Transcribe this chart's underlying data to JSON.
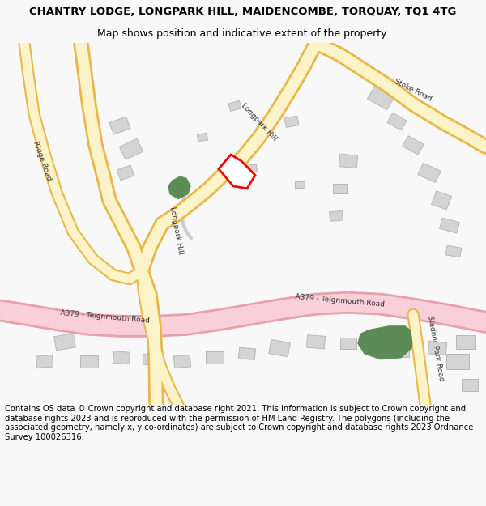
{
  "title_line1": "CHANTRY LODGE, LONGPARK HILL, MAIDENCOMBE, TORQUAY, TQ1 4TG",
  "title_line2": "Map shows position and indicative extent of the property.",
  "footer": "Contains OS data © Crown copyright and database right 2021. This information is subject to Crown copyright and database rights 2023 and is reproduced with the permission of HM Land Registry. The polygons (including the associated geometry, namely x, y co-ordinates) are subject to Crown copyright and database rights 2023 Ordnance Survey 100026316.",
  "bg_color": "#f8f8f8",
  "map_bg": "#ffffff",
  "road_yellow_fill": "#fdf3c8",
  "road_yellow_edge": "#e8b84b",
  "road_pink_fill": "#f9d0d8",
  "road_pink_edge": "#e8a0ab",
  "building_color": "#d4d4d4",
  "building_outline": "#b8b8b8",
  "green_color": "#5c8c55",
  "red_outline": "#ff0000",
  "title_fontsize": 9.5,
  "subtitle_fontsize": 9,
  "footer_fontsize": 7.2,
  "label_color": "#333333",
  "label_fontsize": 6.5
}
